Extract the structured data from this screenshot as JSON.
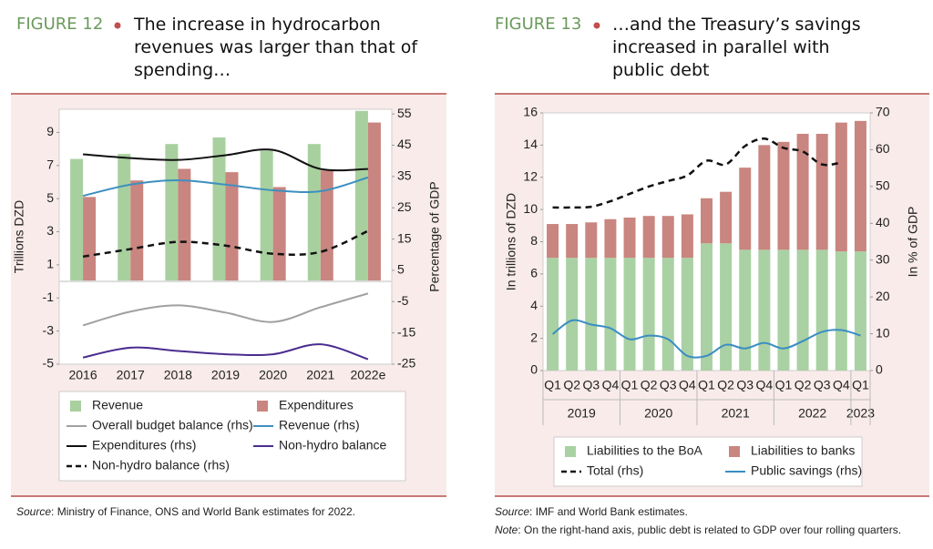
{
  "chart_data": [
    {
      "type": "bar",
      "figure_label": "FIGURE 12",
      "title": "The increase in hydrocarbon revenues was larger than that of spending…",
      "categories": [
        "2016",
        "2017",
        "2018",
        "2019",
        "2020",
        "2021",
        "2022e"
      ],
      "y_label": "Trillions DZD",
      "y2_label": "Percentage of GDP",
      "ylim": [
        -5,
        10.4
      ],
      "yticks": [
        -5,
        -3,
        -1,
        1,
        3,
        5,
        7,
        9
      ],
      "y2lim": [
        -25,
        56.5
      ],
      "y2ticks": [
        -25,
        -15,
        -5,
        5,
        15,
        25,
        35,
        45,
        55
      ],
      "series": [
        {
          "name": "Revenue",
          "mark": "bar",
          "color": "#a8d09f",
          "values": [
            7.4,
            7.7,
            8.3,
            8.7,
            7.9,
            8.3,
            10.3
          ]
        },
        {
          "name": "Expenditures",
          "mark": "bar",
          "color": "#c98580",
          "values": [
            5.1,
            6.1,
            6.8,
            6.6,
            5.7,
            6.7,
            9.6
          ]
        },
        {
          "name": "Overall budget balance (rhs)",
          "mark": "line",
          "axis": "y2",
          "color": "#a0a0a0",
          "values": [
            -12.6,
            -8.2,
            -6.2,
            -8.5,
            -11.5,
            -6.8,
            -2.4
          ]
        },
        {
          "name": "Revenue (rhs)",
          "mark": "line",
          "axis": "y2",
          "color": "#3d8fc0",
          "values": [
            28.8,
            32.4,
            33.8,
            32.4,
            30.6,
            30.3,
            34.7
          ]
        },
        {
          "name": "Expenditures (rhs)",
          "mark": "line",
          "axis": "y2",
          "color": "#111111",
          "values": [
            42.1,
            40.9,
            40.3,
            41.8,
            43.5,
            37.4,
            37.4
          ]
        },
        {
          "name": "Non-hydro balance",
          "mark": "line",
          "color": "#4b2c8f",
          "values": [
            -4.6,
            -4.0,
            -4.2,
            -4.4,
            -4.4,
            -3.8,
            -4.7
          ]
        },
        {
          "name": "Non-hydro balance (rhs)",
          "mark": "line",
          "axis": "y2",
          "dashed": true,
          "color": "#111111",
          "values": [
            9.4,
            11.8,
            14.1,
            12.9,
            10.3,
            10.9,
            17.6
          ]
        }
      ],
      "source_label": "Source",
      "source": ": Ministry of Finance, ONS and World Bank estimates for 2022."
    },
    {
      "type": "bar",
      "stacked": true,
      "figure_label": "FIGURE 13",
      "title": "…and the Treasury’s savings increased in parallel with public debt",
      "categories": [
        "Q1",
        "Q2",
        "Q3",
        "Q4",
        "Q1",
        "Q2",
        "Q3",
        "Q4",
        "Q1",
        "Q2",
        "Q3",
        "Q4",
        "Q1",
        "Q2",
        "Q3",
        "Q4",
        "Q1"
      ],
      "category_groups": [
        "2019",
        null,
        null,
        null,
        "2020",
        null,
        null,
        null,
        "2021",
        null,
        null,
        null,
        "2022",
        null,
        null,
        null,
        "2023"
      ],
      "y_label": "In trillions of DZD",
      "y2_label": "In % of GDP",
      "ylim": [
        0,
        16
      ],
      "yticks": [
        0,
        2,
        4,
        6,
        8,
        10,
        12,
        14,
        16
      ],
      "y2lim": [
        0,
        70
      ],
      "y2ticks": [
        0,
        10,
        20,
        30,
        40,
        50,
        60,
        70
      ],
      "series": [
        {
          "name": "Liabilities to the BoA",
          "mark": "bar",
          "color": "#a9d1a3",
          "values": [
            7.0,
            7.0,
            7.0,
            7.0,
            7.0,
            7.0,
            7.0,
            7.0,
            7.9,
            7.9,
            7.5,
            7.5,
            7.5,
            7.5,
            7.5,
            7.4,
            7.4
          ]
        },
        {
          "name": "Liabilities to banks",
          "mark": "bar",
          "color": "#c9857f",
          "values": [
            2.1,
            2.1,
            2.2,
            2.4,
            2.5,
            2.6,
            2.6,
            2.7,
            2.8,
            3.2,
            5.1,
            6.5,
            6.7,
            7.2,
            7.2,
            8.0,
            8.1
          ]
        },
        {
          "name": "Total (rhs)",
          "mark": "line",
          "axis": "y2",
          "dashed": true,
          "color": "#111111",
          "values": [
            44.3,
            44.3,
            44.5,
            46,
            48,
            50,
            51.5,
            53,
            57,
            56,
            61,
            63,
            60.5,
            59.5,
            56,
            56.5,
            null
          ]
        },
        {
          "name": "Public savings (rhs)",
          "mark": "line",
          "axis": "y2",
          "color": "#3a8dc4",
          "values": [
            9.9,
            13.6,
            12.5,
            11.5,
            8.5,
            9.5,
            8.5,
            4,
            4,
            7,
            6,
            7.5,
            6,
            8,
            10.5,
            11,
            9.5
          ]
        }
      ],
      "source_label": "Source",
      "source": ": IMF and World Bank estimates.",
      "note_label": "Note",
      "note": ": On the right-hand axis, public debt is related to GDP over four rolling quarters."
    }
  ]
}
